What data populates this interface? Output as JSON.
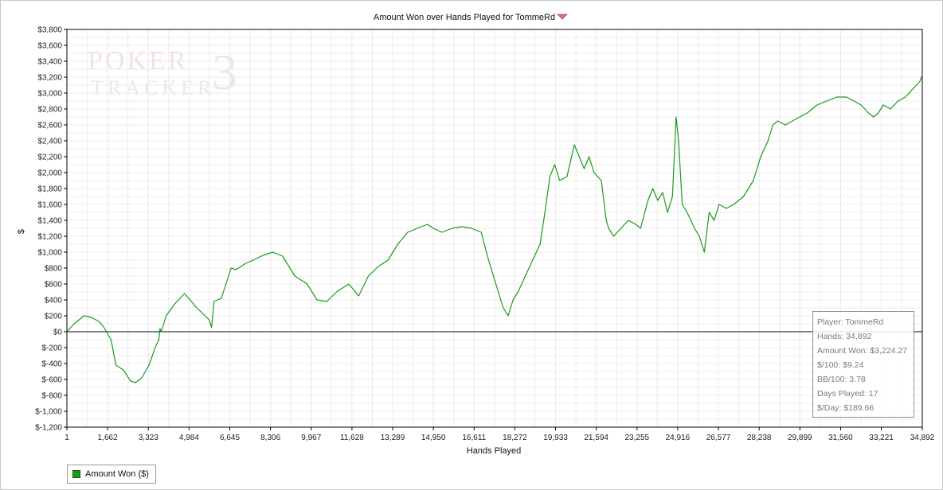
{
  "chart_data": {
    "type": "line",
    "title": "Amount Won over Hands Played for TommeRd",
    "xlabel": "Hands Played",
    "ylabel": "$",
    "xlim": [
      1,
      34892
    ],
    "ylim": [
      -1200,
      3800
    ],
    "grid": true,
    "x_ticks": [
      1,
      1662,
      3323,
      4984,
      6645,
      8306,
      9967,
      11628,
      13289,
      14950,
      16611,
      18272,
      19933,
      21594,
      23255,
      24916,
      26577,
      28238,
      29899,
      31560,
      33221,
      34892
    ],
    "x_tick_labels": [
      "1",
      "1,662",
      "3,323",
      "4,984",
      "6,645",
      "8,306",
      "9,967",
      "11,628",
      "13,289",
      "14,950",
      "16,611",
      "18,272",
      "19,933",
      "21,594",
      "23,255",
      "24,916",
      "26,577",
      "28,238",
      "29,899",
      "31,560",
      "33,221",
      "34,892"
    ],
    "y_ticks": [
      -1200,
      -1000,
      -800,
      -600,
      -400,
      -200,
      0,
      200,
      400,
      600,
      800,
      1000,
      1200,
      1400,
      1600,
      1800,
      2000,
      2200,
      2400,
      2600,
      2800,
      3000,
      3200,
      3400,
      3600,
      3800
    ],
    "y_tick_labels": [
      "$-1,200",
      "$-1,000",
      "$-800",
      "$-600",
      "$-400",
      "$-200",
      "$0",
      "$200",
      "$400",
      "$600",
      "$800",
      "$1,000",
      "$1,200",
      "$1,400",
      "$1,600",
      "$1,800",
      "$2,000",
      "$2,200",
      "$2,400",
      "$2,600",
      "$2,800",
      "$3,000",
      "$3,200",
      "$3,400",
      "$3,600",
      "$3,800"
    ],
    "legend_position": "bottom-left",
    "series": [
      {
        "name": "Amount Won ($)",
        "color": "#1a9a1a",
        "x": [
          1,
          300,
          700,
          1000,
          1300,
          1500,
          1800,
          2000,
          2300,
          2600,
          2800,
          3050,
          3350,
          3600,
          3750,
          3800,
          3850,
          4050,
          4400,
          4800,
          5300,
          5800,
          5900,
          6000,
          6300,
          6700,
          6900,
          7300,
          7600,
          8000,
          8400,
          8800,
          9300,
          9800,
          10200,
          10600,
          11000,
          11500,
          11900,
          12300,
          12700,
          13100,
          13500,
          13900,
          14300,
          14700,
          14950,
          15300,
          15700,
          16100,
          16500,
          16900,
          17200,
          17500,
          17800,
          18000,
          18200,
          18400,
          18700,
          19000,
          19300,
          19500,
          19700,
          19900,
          20100,
          20400,
          20700,
          20900,
          21100,
          21300,
          21500,
          21800,
          22000,
          22100,
          22300,
          22600,
          22900,
          23200,
          23400,
          23700,
          23900,
          24100,
          24300,
          24500,
          24700,
          24850,
          24950,
          25100,
          25300,
          25600,
          25800,
          26000,
          26200,
          26400,
          26600,
          26900,
          27200,
          27600,
          28000,
          28300,
          28600,
          28800,
          29000,
          29300,
          29600,
          29900,
          30200,
          30600,
          31000,
          31400,
          31800,
          32100,
          32400,
          32700,
          32900,
          33100,
          33300,
          33600,
          33900,
          34200,
          34500,
          34800,
          34892
        ],
        "y": [
          0,
          100,
          200,
          180,
          130,
          60,
          -100,
          -420,
          -480,
          -620,
          -640,
          -580,
          -420,
          -200,
          -100,
          40,
          0,
          200,
          350,
          480,
          300,
          150,
          50,
          380,
          420,
          800,
          780,
          860,
          900,
          960,
          1000,
          950,
          700,
          600,
          400,
          380,
          500,
          600,
          450,
          700,
          820,
          900,
          1100,
          1250,
          1300,
          1350,
          1300,
          1250,
          1300,
          1320,
          1300,
          1250,
          900,
          600,
          300,
          200,
          400,
          500,
          700,
          900,
          1100,
          1500,
          1950,
          2100,
          1900,
          1950,
          2350,
          2200,
          2050,
          2200,
          2000,
          1900,
          1400,
          1300,
          1200,
          1300,
          1400,
          1350,
          1300,
          1650,
          1800,
          1650,
          1750,
          1500,
          1700,
          2700,
          2400,
          1600,
          1500,
          1300,
          1200,
          1000,
          1500,
          1400,
          1600,
          1550,
          1600,
          1700,
          1900,
          2200,
          2400,
          2600,
          2650,
          2600,
          2650,
          2700,
          2750,
          2850,
          2900,
          2950,
          2950,
          2900,
          2850,
          2750,
          2700,
          2750,
          2850,
          2800,
          2900,
          2950,
          3050,
          3150,
          3230
        ]
      }
    ]
  },
  "legend": {
    "label": "Amount Won ($)"
  },
  "stats": {
    "player": "Player: TommeRd",
    "hands": "Hands: 34,892",
    "amount_won": "Amount Won: $3,224.27",
    "per_100": "$/100: $9.24",
    "bb_per_100": "BB/100: 3.78",
    "days_played": "Days Played: 17",
    "per_day": "$/Day: $189.66"
  },
  "watermark": {
    "line1": "POKER",
    "line2": "TRACKER",
    "digit": "3"
  },
  "colors": {
    "series": "#1a9a1a",
    "grid": "#ececec",
    "axis": "#000000",
    "title_icon": "#e06b7a"
  }
}
